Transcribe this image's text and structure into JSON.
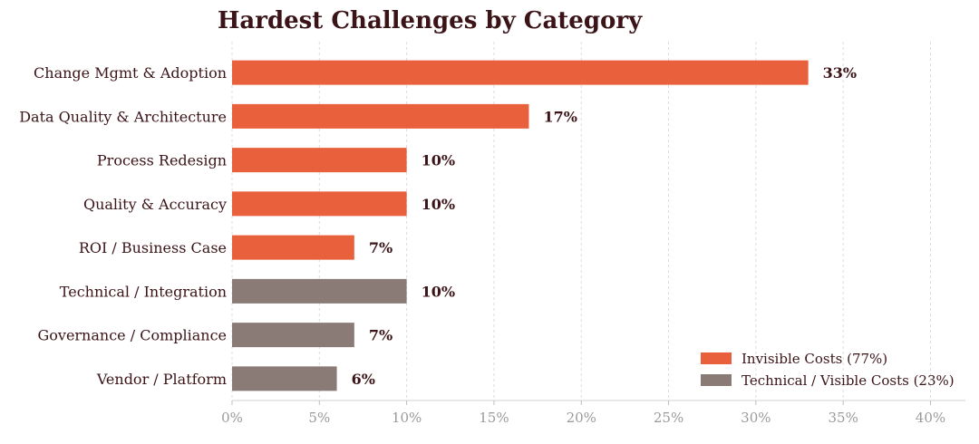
{
  "chart_data": {
    "type": "bar",
    "orientation": "horizontal",
    "title": "Hardest Challenges by Category",
    "xlabel": "",
    "ylabel": "",
    "xlim": [
      0,
      42
    ],
    "xticks": [
      "0%",
      "5%",
      "10%",
      "15%",
      "20%",
      "25%",
      "30%",
      "35%",
      "40%"
    ],
    "xtick_values": [
      0,
      5,
      10,
      15,
      20,
      25,
      30,
      35,
      40
    ],
    "grid": "vertical dashed",
    "legend_position": "bottom-right",
    "categories": [
      "Change Mgmt & Adoption",
      "Data Quality & Architecture",
      "Process Redesign",
      "Quality & Accuracy",
      "ROI / Business Case",
      "Technical / Integration",
      "Governance / Compliance",
      "Vendor / Platform"
    ],
    "values": [
      33,
      17,
      10,
      10,
      7,
      10,
      7,
      6
    ],
    "value_labels": [
      "33%",
      "17%",
      "10%",
      "10%",
      "7%",
      "10%",
      "7%",
      "6%"
    ],
    "groups": [
      "Invisible Costs (77%)",
      "Invisible Costs (77%)",
      "Invisible Costs (77%)",
      "Invisible Costs (77%)",
      "Invisible Costs (77%)",
      "Technical / Visible Costs (23%)",
      "Technical / Visible Costs (23%)",
      "Technical / Visible Costs (23%)"
    ],
    "legend": [
      {
        "label": "Invisible Costs (77%)",
        "color": "#e8603c"
      },
      {
        "label": "Technical / Visible Costs (23%)",
        "color": "#8b7b76"
      }
    ]
  }
}
